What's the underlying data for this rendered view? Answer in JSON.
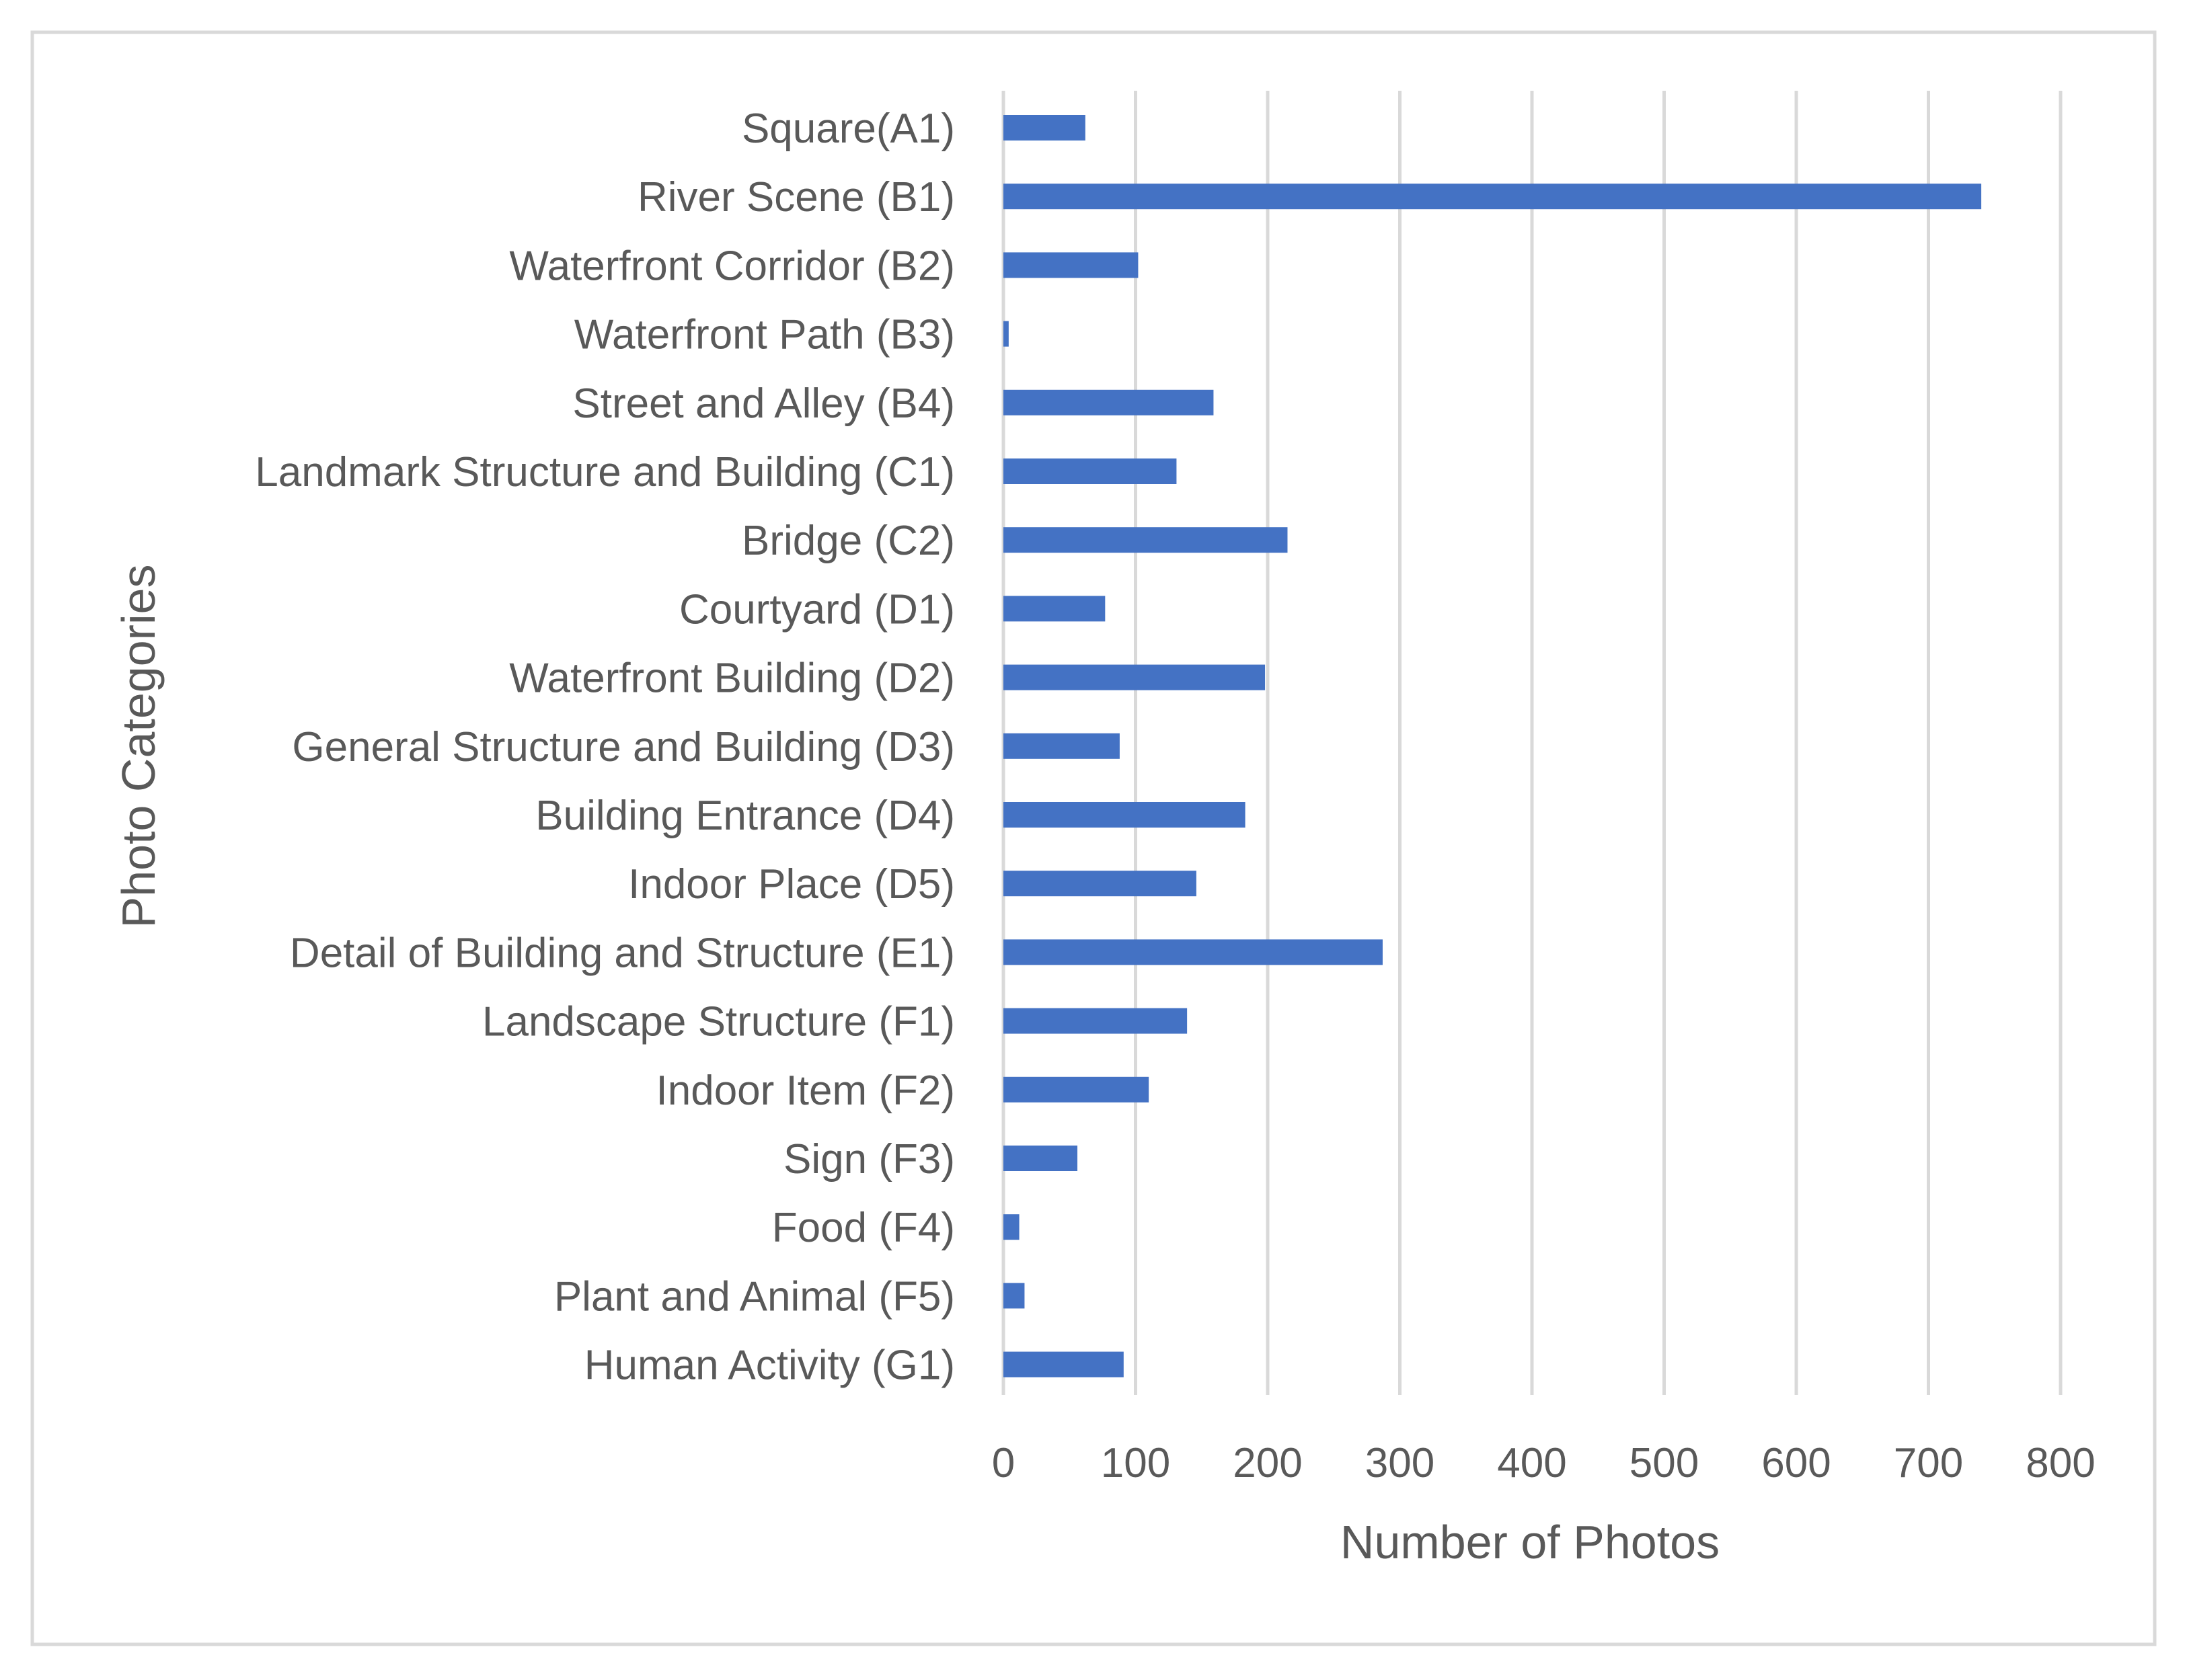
{
  "chart_data": {
    "type": "bar",
    "orientation": "horizontal",
    "title": "",
    "xlabel": "Number of Photos",
    "ylabel": "Photo Categories",
    "categories": [
      "Square(A1)",
      "River Scene (B1)",
      "Waterfront Corridor (B2)",
      "Waterfront Path (B3)",
      "Street and Alley (B4)",
      "Landmark Structure and Building (C1)",
      "Bridge (C2)",
      "Courtyard (D1)",
      "Waterfront Building (D2)",
      "General Structure and Building (D3)",
      "Building Entrance (D4)",
      "Indoor Place (D5)",
      "Detail of Building and Structure (E1)",
      "Landscape Structure (F1)",
      "Indoor Item (F2)",
      "Sign (F3)",
      "Food (F4)",
      "Plant and Animal (F5)",
      "Human Activity (G1)"
    ],
    "values": [
      62,
      740,
      102,
      4,
      159,
      131,
      215,
      77,
      198,
      88,
      183,
      146,
      287,
      139,
      110,
      56,
      12,
      16,
      91
    ],
    "xlim": [
      0,
      800
    ],
    "xticks": [
      0,
      100,
      200,
      300,
      400,
      500,
      600,
      700,
      800
    ],
    "grid": "vertical",
    "legend": "none",
    "colors": {
      "bar": "#4472C4",
      "grid": "#D9D9D9",
      "text": "#595959",
      "border": "#D9D9D9",
      "background": "#FFFFFF"
    }
  }
}
